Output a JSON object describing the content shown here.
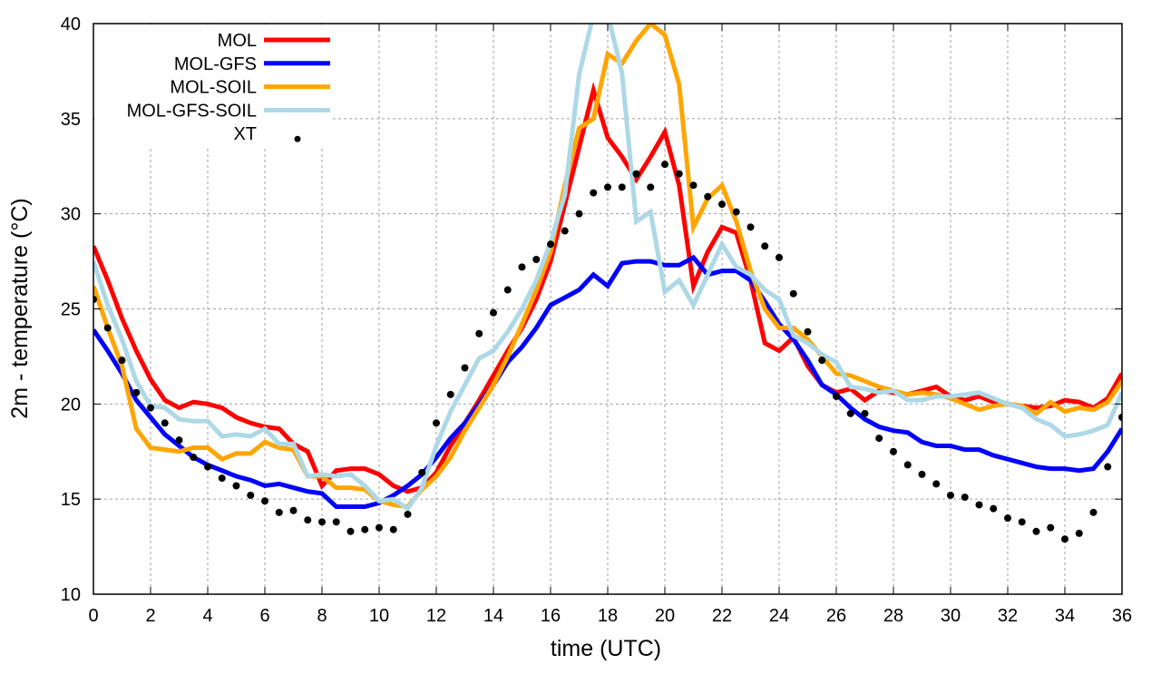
{
  "chart_data": {
    "type": "line",
    "title": "",
    "xlabel": "time (UTC)",
    "ylabel": "2m - temperature (°C)",
    "xlim": [
      0,
      36
    ],
    "ylim": [
      10,
      40
    ],
    "xticks": [
      "0",
      "2",
      "4",
      "6",
      "8",
      "10",
      "12",
      "14",
      "16",
      "18",
      "20",
      "22",
      "24",
      "26",
      "28",
      "30",
      "32",
      "34",
      "36"
    ],
    "yticks": [
      "10",
      "15",
      "20",
      "25",
      "30",
      "35",
      "40"
    ],
    "grid": true,
    "legend_position": "top-left",
    "x_step": 0.5,
    "series": [
      {
        "name": "MOL",
        "style": "line",
        "color": "#ff0000",
        "values": [
          28.3,
          26.5,
          24.5,
          22.8,
          21.3,
          20.2,
          19.8,
          20.1,
          20.0,
          19.8,
          19.3,
          19.0,
          18.8,
          18.7,
          17.9,
          17.5,
          15.7,
          16.5,
          16.6,
          16.6,
          16.3,
          15.7,
          15.4,
          15.6,
          16.4,
          17.8,
          19.0,
          20.2,
          21.5,
          22.8,
          24.0,
          25.5,
          27.5,
          30.5,
          33.5,
          36.5,
          34.0,
          33.0,
          31.8,
          33.0,
          34.3,
          31.5,
          26.2,
          28.0,
          29.3,
          29.0,
          26.5,
          23.2,
          22.8,
          23.5,
          22.0,
          21.0,
          20.6,
          20.8,
          20.2,
          20.7,
          20.6,
          20.5,
          20.7,
          20.9,
          20.4,
          20.2,
          20.4,
          20.1,
          20.0,
          19.9,
          19.8,
          19.9,
          20.2,
          20.1,
          19.8,
          20.3,
          21.6
        ]
      },
      {
        "name": "MOL-GFS",
        "style": "line",
        "color": "#0000ff",
        "values": [
          23.9,
          22.8,
          21.6,
          20.2,
          19.3,
          18.4,
          17.8,
          17.2,
          16.8,
          16.5,
          16.2,
          16.0,
          15.7,
          15.8,
          15.6,
          15.4,
          15.3,
          14.6,
          14.6,
          14.6,
          14.8,
          15.2,
          15.7,
          16.3,
          17.2,
          18.2,
          19.0,
          20.0,
          21.0,
          22.2,
          23.0,
          24.0,
          25.2,
          25.6,
          26.0,
          26.8,
          26.2,
          27.4,
          27.5,
          27.5,
          27.3,
          27.3,
          27.7,
          26.8,
          27.0,
          27.0,
          26.5,
          25.4,
          24.2,
          23.4,
          22.3,
          21.0,
          20.5,
          19.8,
          19.2,
          18.8,
          18.6,
          18.5,
          18.0,
          17.8,
          17.8,
          17.6,
          17.6,
          17.3,
          17.1,
          16.9,
          16.7,
          16.6,
          16.6,
          16.5,
          16.6,
          17.5,
          18.7
        ]
      },
      {
        "name": "MOL-SOIL",
        "style": "line",
        "color": "#ffa500",
        "values": [
          26.2,
          24.0,
          22.0,
          18.7,
          17.7,
          17.6,
          17.5,
          17.7,
          17.7,
          17.1,
          17.4,
          17.4,
          18.0,
          17.7,
          17.6,
          16.2,
          16.2,
          15.6,
          15.6,
          15.5,
          14.9,
          14.7,
          14.6,
          15.5,
          16.2,
          17.2,
          18.6,
          19.8,
          21.0,
          22.5,
          24.2,
          26.0,
          28.0,
          31.5,
          34.5,
          35.0,
          38.4,
          37.9,
          39.1,
          40.0,
          39.4,
          36.8,
          29.3,
          30.8,
          31.5,
          29.6,
          27.0,
          25.0,
          24.0,
          24.0,
          23.4,
          22.5,
          21.6,
          21.5,
          21.2,
          20.9,
          20.7,
          20.5,
          20.6,
          20.5,
          20.3,
          20.0,
          19.7,
          19.9,
          20.0,
          19.9,
          19.5,
          20.1,
          19.6,
          19.8,
          19.7,
          20.1,
          21.2
        ]
      },
      {
        "name": "MOL-GFS-SOIL",
        "style": "line",
        "color": "#add8e6",
        "values": [
          27.5,
          25.2,
          23.4,
          21.2,
          19.9,
          19.8,
          19.2,
          19.1,
          19.1,
          18.3,
          18.4,
          18.3,
          18.7,
          17.9,
          17.9,
          16.2,
          16.3,
          16.2,
          16.3,
          15.7,
          14.9,
          15.0,
          14.5,
          15.6,
          17.8,
          19.6,
          21.0,
          22.4,
          22.8,
          23.8,
          25.0,
          26.5,
          28.5,
          31.0,
          37.3,
          40.5,
          40.5,
          37.4,
          29.6,
          30.1,
          25.9,
          26.5,
          25.2,
          26.8,
          28.4,
          27.2,
          26.8,
          26.0,
          25.5,
          23.6,
          23.2,
          22.6,
          22.2,
          20.9,
          20.8,
          20.6,
          20.7,
          20.2,
          20.2,
          20.4,
          20.4,
          20.5,
          20.6,
          20.3,
          20.0,
          19.8,
          19.2,
          18.9,
          18.3,
          18.4,
          18.6,
          18.9,
          20.6
        ]
      },
      {
        "name": "XT",
        "style": "points",
        "color": "#000000",
        "values": [
          25.5,
          24.0,
          22.3,
          20.6,
          19.8,
          19.0,
          18.1,
          17.2,
          16.7,
          16.1,
          15.7,
          15.2,
          14.9,
          14.3,
          14.4,
          13.9,
          13.8,
          13.8,
          13.3,
          13.4,
          13.5,
          13.4,
          14.2,
          16.4,
          19.0,
          20.5,
          21.9,
          23.7,
          24.8,
          26.0,
          27.2,
          27.6,
          28.4,
          29.1,
          30.0,
          31.1,
          31.4,
          31.4,
          32.1,
          31.4,
          32.6,
          32.1,
          31.5,
          30.9,
          30.5,
          30.1,
          29.3,
          28.3,
          27.7,
          25.8,
          23.8,
          22.3,
          20.4,
          19.5,
          19.5,
          18.2,
          17.5,
          16.8,
          16.3,
          15.8,
          15.2,
          15.1,
          14.7,
          14.5,
          14.0,
          13.8,
          13.3,
          13.5,
          12.9,
          13.2,
          14.3,
          16.7,
          19.3
        ]
      }
    ]
  }
}
